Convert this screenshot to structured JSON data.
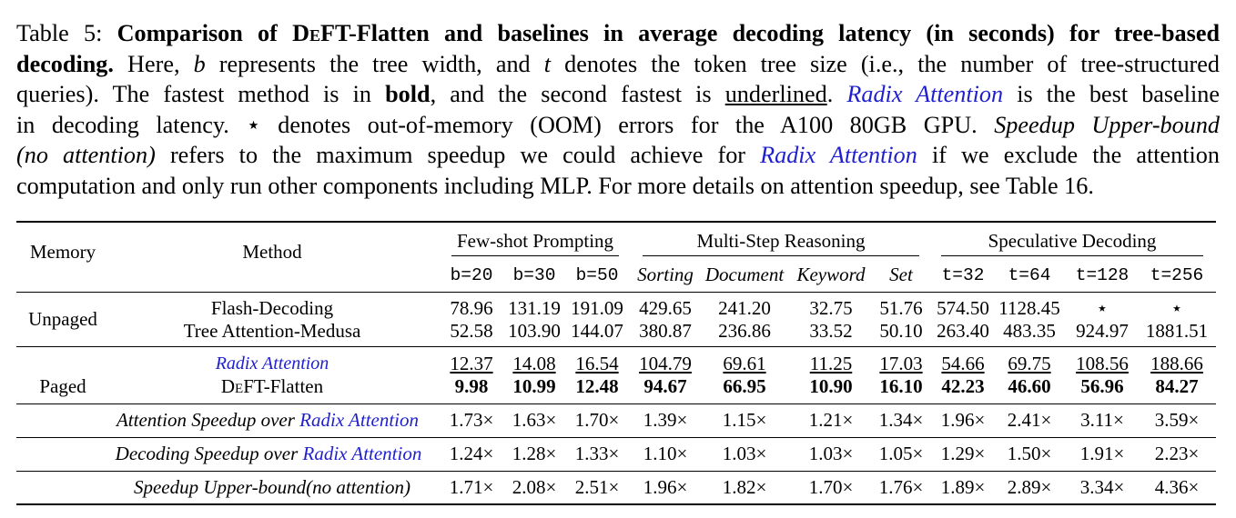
{
  "caption": {
    "line1_a": "Table 5: ",
    "line1_b": "Comparison of ",
    "deft_d": "D",
    "deft_e": "e",
    "deft_rest": "FT-Flatten and baselines in average decoding latency (in seconds) for tree-based",
    "line2_bold": "decoding.",
    "line2_rest_a": " Here, ",
    "var_b": "b",
    "line2_rest_b": " represents the tree width, and ",
    "var_t": "t",
    "line2_rest_c": " denotes the token tree size (i.e., the number of tree-structured",
    "line3_a": "queries). The fastest method is in ",
    "line3_bold": "bold",
    "line3_b": ", and the second fastest is ",
    "line3_underline": "underlined",
    "line3_c": ". ",
    "line3_radix": "Radix Attention",
    "line3_d": " is the best baseline",
    "line4_a": "in decoding latency. ⋆ denotes out-of-memory (OOM) errors for the A100 80GB GPU. ",
    "line4_it": "Speedup Upper-bound",
    "line5_it": "(no attention)",
    "line5_a": " refers to the maximum speedup we could achieve for ",
    "line5_radix": "Radix Attention",
    "line5_b": " if we exclude the attention",
    "line6": "computation and only run other components including MLP. For more details on attention speedup, see Table 16."
  },
  "table": {
    "header": {
      "memory": "Memory",
      "method": "Method",
      "group_fewshot": "Few-shot Prompting",
      "group_multistep": "Multi-Step Reasoning",
      "group_speculative": "Speculative Decoding",
      "sub": [
        "b=20",
        "b=30",
        "b=50",
        "Sorting",
        "Document",
        "Keyword",
        "Set",
        "t=32",
        "t=64",
        "t=128",
        "t=256"
      ]
    },
    "unpaged_label": "Unpaged",
    "paged_label": "Paged",
    "rows": {
      "flash": {
        "method": "Flash-Decoding",
        "values": [
          "78.96",
          "131.19",
          "191.09",
          "429.65",
          "241.20",
          "32.75",
          "51.76",
          "574.50",
          "1128.45",
          "⋆",
          "⋆"
        ]
      },
      "medusa": {
        "method": "Tree Attention-Medusa",
        "values": [
          "52.58",
          "103.90",
          "144.07",
          "380.87",
          "236.86",
          "33.52",
          "50.10",
          "263.40",
          "483.35",
          "924.97",
          "1881.51"
        ]
      },
      "radix": {
        "method": "Radix Attention",
        "values": [
          "12.37",
          "14.08",
          "16.54",
          "104.79",
          "69.61",
          "11.25",
          "17.03",
          "54.66",
          "69.75",
          "108.56",
          "188.66"
        ]
      },
      "deft": {
        "method_d": "D",
        "method_e": "e",
        "method_rest": "FT-Flatten",
        "values": [
          "9.98",
          "10.99",
          "12.48",
          "94.67",
          "66.95",
          "10.90",
          "16.10",
          "42.23",
          "46.60",
          "56.96",
          "84.27"
        ]
      }
    },
    "speedups": {
      "attention": {
        "label_a": "Attention Speedup over ",
        "label_radix": "Radix Attention",
        "values": [
          "1.73×",
          "1.63×",
          "1.70×",
          "1.39×",
          "1.15×",
          "1.21×",
          "1.34×",
          "1.96×",
          "2.41×",
          "3.11×",
          "3.59×"
        ]
      },
      "decoding": {
        "label_a": "Decoding Speedup over ",
        "label_radix": "Radix Attention",
        "values": [
          "1.24×",
          "1.28×",
          "1.33×",
          "1.10×",
          "1.03×",
          "1.03×",
          "1.05×",
          "1.29×",
          "1.50×",
          "1.91×",
          "2.23×"
        ]
      },
      "upper": {
        "label": "Speedup Upper-bound(no attention)",
        "values": [
          "1.71×",
          "2.08×",
          "2.51×",
          "1.96×",
          "1.82×",
          "1.70×",
          "1.76×",
          "1.89×",
          "2.89×",
          "3.34×",
          "4.36×"
        ]
      }
    },
    "colors": {
      "link_blue": "#1f1fcf",
      "rule": "#000000"
    }
  }
}
